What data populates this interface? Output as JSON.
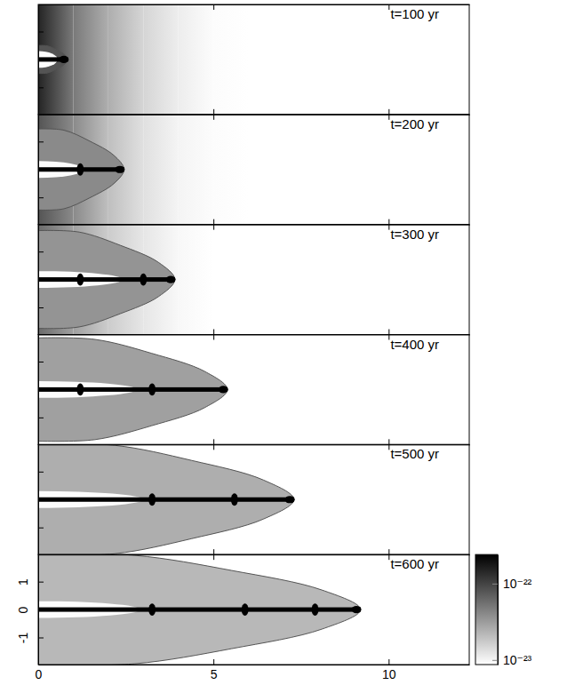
{
  "chart_data": {
    "type": "heatmap",
    "log": true,
    "xlim": [
      0,
      12.3
    ],
    "xticks": [
      0,
      5,
      10
    ],
    "ylim": [
      -1.97,
      1.97
    ],
    "yticks": [
      -1,
      0,
      1
    ],
    "colorbar": {
      "range": [
        8.7e-24,
        2.4e-22
      ],
      "ticks": [
        {
          "value": 1e-22,
          "label": "10⁻²²"
        },
        {
          "value": 1e-23,
          "label": "10⁻²³"
        }
      ]
    },
    "beam_density": 3e-22,
    "beam_halfwidth": 0.08,
    "knot_density": 3e-22,
    "cavity_density": 9e-24,
    "cavity_halfwidth": 0.3,
    "ambient_x": [
      0,
      1,
      2,
      3,
      4,
      5,
      6
    ],
    "panels": [
      {
        "title": "t=100 yr",
        "head": 0.85,
        "cocoon_halfwidth": 0.5,
        "cocoon_density": 8e-23,
        "cavity_length": 0.55,
        "knots": [],
        "ambient_density": [
          1.5e-22,
          5e-23,
          2.5e-23,
          1.5e-23,
          1.1e-23,
          9e-24,
          8e-24
        ]
      },
      {
        "title": "t=200 yr",
        "head": 2.45,
        "cocoon_halfwidth": 1.45,
        "cocoon_density": 4e-23,
        "cavity_length": 1.3,
        "knots": [
          1.2
        ],
        "ambient_density": [
          8e-23,
          4e-23,
          2e-23,
          1.3e-23,
          1e-23,
          9e-24,
          8e-24
        ]
      },
      {
        "title": "t=300 yr",
        "head": 3.9,
        "cocoon_halfwidth": 1.75,
        "cocoon_density": 3.5e-23,
        "cavity_length": 2.4,
        "knots": [
          1.2,
          3.0
        ],
        "ambient_density": [
          6e-23,
          3e-23,
          1.7e-23,
          1.2e-23,
          9.5e-24,
          8.5e-24,
          8e-24
        ]
      },
      {
        "title": "t=400 yr",
        "head": 5.4,
        "cocoon_halfwidth": 1.85,
        "cocoon_density": 3e-23,
        "cavity_length": 2.8,
        "knots": [
          1.2,
          3.25
        ]
      },
      {
        "title": "t=500 yr",
        "head": 7.3,
        "cocoon_halfwidth": 2.0,
        "cocoon_density": 2.5e-23,
        "cavity_length": 3.0,
        "knots": [
          3.25,
          5.6
        ]
      },
      {
        "title": "t=600 yr",
        "head": 9.2,
        "cocoon_halfwidth": 2.0,
        "cocoon_density": 2.2e-23,
        "cavity_length": 2.9,
        "knots": [
          3.25,
          5.9,
          7.9
        ]
      }
    ]
  }
}
